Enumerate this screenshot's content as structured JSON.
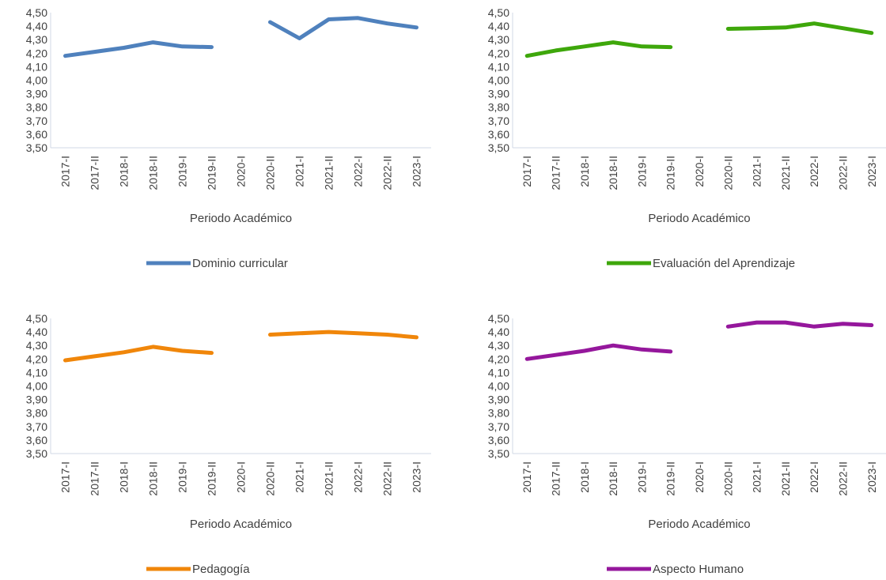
{
  "chart_data": [
    {
      "type": "line",
      "categories": [
        "2017-I",
        "2017-II",
        "2018-I",
        "2018-II",
        "2019-I",
        "2019-II",
        "2020-I",
        "2020-II",
        "2021-I",
        "2021-II",
        "2022-I",
        "2022-II",
        "2023-I"
      ],
      "series": [
        {
          "name": "Dominio curricular",
          "values": [
            4.18,
            4.21,
            4.24,
            4.28,
            4.25,
            4.245,
            null,
            4.43,
            4.31,
            4.45,
            4.46,
            4.42,
            4.39
          ]
        }
      ],
      "xlabel": "Periodo Académico",
      "ylabel": "",
      "ylim": [
        3.5,
        4.5
      ],
      "yticks": [
        "3,50",
        "3,60",
        "3,70",
        "3,80",
        "3,90",
        "4,00",
        "4,10",
        "4,20",
        "4,30",
        "4,40",
        "4,50"
      ],
      "color": "#4f81bd",
      "legend": "bottom",
      "grid": false
    },
    {
      "type": "line",
      "categories": [
        "2017-I",
        "2017-II",
        "2018-I",
        "2018-II",
        "2019-I",
        "2019-II",
        "2020-I",
        "2020-II",
        "2021-I",
        "2021-II",
        "2022-I",
        "2022-II",
        "2023-I"
      ],
      "series": [
        {
          "name": "Evaluación del Aprendizaje",
          "values": [
            4.18,
            4.22,
            4.25,
            4.28,
            4.25,
            4.245,
            null,
            4.38,
            4.385,
            4.39,
            4.42,
            4.385,
            4.35
          ]
        }
      ],
      "xlabel": "Periodo Académico",
      "ylabel": "",
      "ylim": [
        3.5,
        4.5
      ],
      "yticks": [
        "3,50",
        "3,60",
        "3,70",
        "3,80",
        "3,90",
        "4,00",
        "4,10",
        "4,20",
        "4,30",
        "4,40",
        "4,50"
      ],
      "color": "#3ea70b",
      "legend": "bottom",
      "grid": false
    },
    {
      "type": "line",
      "categories": [
        "2017-I",
        "2017-II",
        "2018-I",
        "2018-II",
        "2019-I",
        "2019-II",
        "2020-I",
        "2020-II",
        "2021-I",
        "2021-II",
        "2022-I",
        "2022-II",
        "2023-I"
      ],
      "series": [
        {
          "name": "Pedagogía",
          "values": [
            4.19,
            4.22,
            4.25,
            4.29,
            4.26,
            4.245,
            null,
            4.38,
            4.39,
            4.4,
            4.39,
            4.38,
            4.36
          ]
        }
      ],
      "xlabel": "Periodo Académico",
      "ylabel": "",
      "ylim": [
        3.5,
        4.5
      ],
      "yticks": [
        "3,50",
        "3,60",
        "3,70",
        "3,80",
        "3,90",
        "4,00",
        "4,10",
        "4,20",
        "4,30",
        "4,40",
        "4,50"
      ],
      "color": "#f0860a",
      "legend": "bottom",
      "grid": false
    },
    {
      "type": "line",
      "categories": [
        "2017-I",
        "2017-II",
        "2018-I",
        "2018-II",
        "2019-I",
        "2019-II",
        "2020-I",
        "2020-II",
        "2021-I",
        "2021-II",
        "2022-I",
        "2022-II",
        "2023-I"
      ],
      "series": [
        {
          "name": "Aspecto Humano",
          "values": [
            4.2,
            4.23,
            4.26,
            4.3,
            4.27,
            4.255,
            null,
            4.44,
            4.47,
            4.47,
            4.44,
            4.46,
            4.45
          ]
        }
      ],
      "xlabel": "Periodo Académico",
      "ylabel": "",
      "ylim": [
        3.5,
        4.5
      ],
      "yticks": [
        "3,50",
        "3,60",
        "3,70",
        "3,80",
        "3,90",
        "4,00",
        "4,10",
        "4,20",
        "4,30",
        "4,40",
        "4,50"
      ],
      "color": "#95179c",
      "legend": "bottom",
      "grid": false
    }
  ]
}
